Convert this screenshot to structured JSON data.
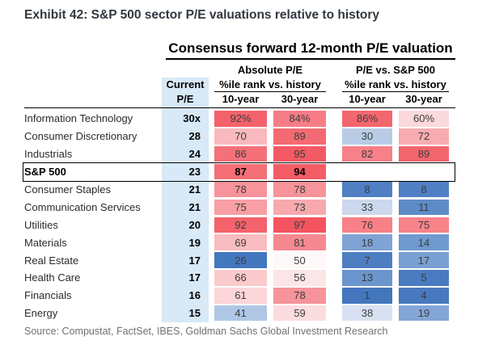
{
  "exhibit_title": "Exhibit 42: S&P 500 sector P/E valuations relative to history",
  "source": "Source: Compustat, FactSet, IBES, Goldman Sachs Global Investment Research",
  "palette": {
    "current_col_bg": "#D8E9F7",
    "high_red": "#F4545F",
    "mid_white": "#FEF8F9",
    "low_blue": "#4376BD",
    "rule_black": "#000000"
  },
  "chart_data": {
    "type": "heatmap",
    "title": "Consensus forward 12-month P/E valuation",
    "group_headers": {
      "absolute": "Absolute P/E",
      "relative": "P/E vs. S&P 500"
    },
    "col_headers": {
      "current_line1": "Current",
      "current_line2": "P/E",
      "pct_rank": "%ile rank vs. history",
      "year10": "10-year",
      "year30": "30-year"
    },
    "value_scale": "percentile 0-100; red = high, white = mid, blue = low",
    "rows": [
      {
        "name": "Information Technology",
        "current": {
          "value": 30,
          "text": "30x"
        },
        "abs10": {
          "value": 92,
          "text": "92%",
          "color": "#F4626B"
        },
        "abs30": {
          "value": 84,
          "text": "84%",
          "color": "#F67D85"
        },
        "rel10": {
          "value": 86,
          "text": "86%",
          "color": "#F4666E"
        },
        "rel30": {
          "value": 60,
          "text": "60%",
          "color": "#FBD9DC"
        }
      },
      {
        "name": "Consumer Discretionary",
        "current": {
          "value": 28,
          "text": "28"
        },
        "abs10": {
          "value": 70,
          "text": "70",
          "color": "#F9B9BE"
        },
        "abs30": {
          "value": 89,
          "text": "89",
          "color": "#F46A72"
        },
        "rel10": {
          "value": 30,
          "text": "30",
          "color": "#B9CCE6"
        },
        "rel30": {
          "value": 72,
          "text": "72",
          "color": "#F8ACB1"
        }
      },
      {
        "name": "Industrials",
        "current": {
          "value": 24,
          "text": "24"
        },
        "abs10": {
          "value": 86,
          "text": "86",
          "color": "#F57179"
        },
        "abs30": {
          "value": 95,
          "text": "95",
          "color": "#F45A64"
        },
        "rel10": {
          "value": 82,
          "text": "82",
          "color": "#F68189"
        },
        "rel30": {
          "value": 89,
          "text": "89",
          "color": "#F4666E"
        }
      },
      {
        "name": "S&P 500",
        "emphasis": true,
        "current": {
          "value": 23,
          "text": "23"
        },
        "abs10": {
          "value": 87,
          "text": "87",
          "color": "#F56F77"
        },
        "abs30": {
          "value": 94,
          "text": "94",
          "color": "#F45D66"
        },
        "rel10": null,
        "rel30": null
      },
      {
        "name": "Consumer Staples",
        "current": {
          "value": 21,
          "text": "21"
        },
        "abs10": {
          "value": 78,
          "text": "78",
          "color": "#F7939A"
        },
        "abs30": {
          "value": 78,
          "text": "78",
          "color": "#F7939A"
        },
        "rel10": {
          "value": 8,
          "text": "8",
          "color": "#5080C3"
        },
        "rel30": {
          "value": 8,
          "text": "8",
          "color": "#5080C3"
        }
      },
      {
        "name": "Communication Services",
        "current": {
          "value": 21,
          "text": "21"
        },
        "abs10": {
          "value": 75,
          "text": "75",
          "color": "#F89FA5"
        },
        "abs30": {
          "value": 73,
          "text": "73",
          "color": "#F8A9AE"
        },
        "rel10": {
          "value": 33,
          "text": "33",
          "color": "#CBD8ED"
        },
        "rel30": {
          "value": 11,
          "text": "11",
          "color": "#5E8BC8"
        }
      },
      {
        "name": "Utilities",
        "current": {
          "value": 20,
          "text": "20"
        },
        "abs10": {
          "value": 92,
          "text": "92",
          "color": "#F4626B"
        },
        "abs30": {
          "value": 97,
          "text": "97",
          "color": "#F4545F"
        },
        "rel10": {
          "value": 76,
          "text": "76",
          "color": "#F88188"
        },
        "rel30": {
          "value": 75,
          "text": "75",
          "color": "#F88389"
        }
      },
      {
        "name": "Materials",
        "current": {
          "value": 19,
          "text": "19"
        },
        "abs10": {
          "value": 69,
          "text": "69",
          "color": "#F9BCC0"
        },
        "abs30": {
          "value": 81,
          "text": "81",
          "color": "#F68890"
        },
        "rel10": {
          "value": 18,
          "text": "18",
          "color": "#7FA3D5"
        },
        "rel30": {
          "value": 14,
          "text": "14",
          "color": "#6F99CF"
        }
      },
      {
        "name": "Real Estate",
        "current": {
          "value": 17,
          "text": "17"
        },
        "abs10": {
          "value": 26,
          "text": "26",
          "color": "#4377BE"
        },
        "abs30": {
          "value": 50,
          "text": "50",
          "color": "#FEF8F9"
        },
        "rel10": {
          "value": 7,
          "text": "7",
          "color": "#4E7EC2"
        },
        "rel30": {
          "value": 17,
          "text": "17",
          "color": "#7AA0D3"
        }
      },
      {
        "name": "Health Care",
        "current": {
          "value": 17,
          "text": "17"
        },
        "abs10": {
          "value": 66,
          "text": "66",
          "color": "#FACACD"
        },
        "abs30": {
          "value": 56,
          "text": "56",
          "color": "#FCE5E7"
        },
        "rel10": {
          "value": 13,
          "text": "13",
          "color": "#6B95CD"
        },
        "rel30": {
          "value": 5,
          "text": "5",
          "color": "#4A7BC0"
        }
      },
      {
        "name": "Financials",
        "current": {
          "value": 16,
          "text": "16"
        },
        "abs10": {
          "value": 61,
          "text": "61",
          "color": "#FBD5D8"
        },
        "abs30": {
          "value": 78,
          "text": "78",
          "color": "#F7939A"
        },
        "rel10": {
          "value": 1,
          "text": "1",
          "color": "#4376BD"
        },
        "rel30": {
          "value": 4,
          "text": "4",
          "color": "#4879BF"
        }
      },
      {
        "name": "Energy",
        "current": {
          "value": 15,
          "text": "15"
        },
        "abs10": {
          "value": 41,
          "text": "41",
          "color": "#AFC7E4"
        },
        "abs30": {
          "value": 59,
          "text": "59",
          "color": "#FBDCDF"
        },
        "rel10": {
          "value": 38,
          "text": "38",
          "color": "#D7E1F1"
        },
        "rel30": {
          "value": 19,
          "text": "19",
          "color": "#84A6D7"
        }
      }
    ]
  }
}
